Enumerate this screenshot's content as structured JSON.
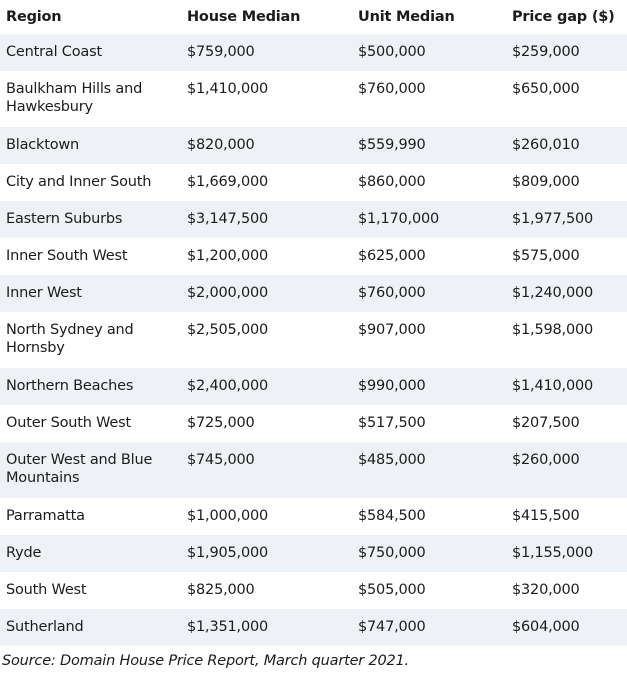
{
  "table": {
    "headers": [
      "Region",
      "House Median",
      "Unit Median",
      "Price gap ($)"
    ],
    "rows": [
      [
        "Central Coast",
        "$759,000",
        "$500,000",
        "$259,000"
      ],
      [
        "Baulkham Hills and Hawkesbury",
        "$1,410,000",
        "$760,000",
        "$650,000"
      ],
      [
        "Blacktown",
        "$820,000",
        "$559,990",
        "$260,010"
      ],
      [
        "City and Inner South",
        "$1,669,000",
        "$860,000",
        "$809,000"
      ],
      [
        "Eastern Suburbs",
        "$3,147,500",
        "$1,170,000",
        "$1,977,500"
      ],
      [
        "Inner South West",
        "$1,200,000",
        "$625,000",
        "$575,000"
      ],
      [
        "Inner West",
        "$2,000,000",
        "$760,000",
        "$1,240,000"
      ],
      [
        "North Sydney and Hornsby",
        "$2,505,000",
        "$907,000",
        "$1,598,000"
      ],
      [
        "Northern Beaches",
        "$2,400,000",
        "$990,000",
        "$1,410,000"
      ],
      [
        "Outer South West",
        "$725,000",
        "$517,500",
        "$207,500"
      ],
      [
        "Outer West and Blue Mountains",
        "$745,000",
        "$485,000",
        "$260,000"
      ],
      [
        "Parramatta",
        "$1,000,000",
        "$584,500",
        "$415,500"
      ],
      [
        "Ryde",
        "$1,905,000",
        "$750,000",
        "$1,155,000"
      ],
      [
        "South West",
        "$825,000",
        "$505,000",
        "$320,000"
      ],
      [
        "Sutherland",
        "$1,351,000",
        "$747,000",
        "$604,000"
      ]
    ]
  },
  "source": "Source: Domain House Price Report, March quarter 2021."
}
